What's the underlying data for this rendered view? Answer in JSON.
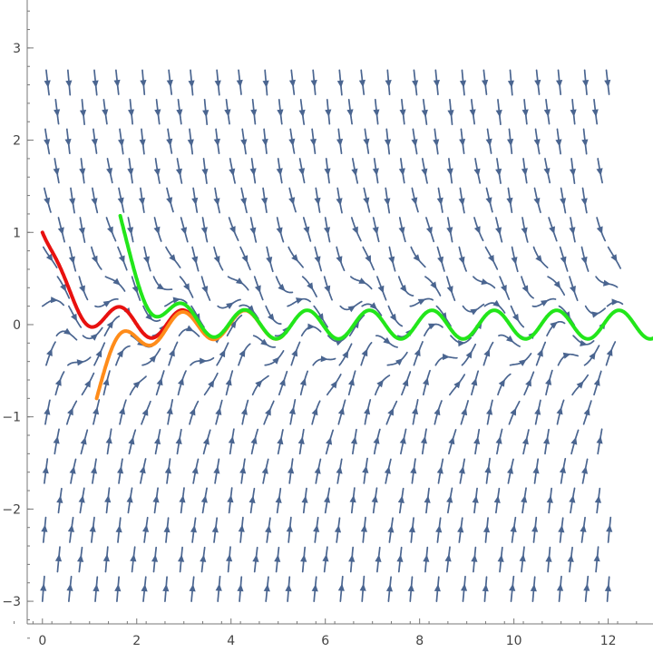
{
  "chart_data": {
    "type": "streamplot",
    "title": "",
    "xlabel": "",
    "ylabel": "",
    "xlim": [
      -0.9,
      12.95
    ],
    "ylim": [
      -3.55,
      3.52
    ],
    "x_ticks": [
      0,
      2,
      4,
      6,
      8,
      10,
      12
    ],
    "y_ticks": [
      -3,
      -2,
      -1,
      0,
      1,
      2,
      3
    ],
    "x_tick_labels": [
      "0",
      "2",
      "4",
      "6",
      "8",
      "10",
      "12"
    ],
    "y_tick_labels": [
      "−3",
      "−2",
      "−1",
      "0",
      "1",
      "2",
      "3"
    ],
    "frame": "bottom-left axes",
    "grid": false,
    "stream_color": "#4a6590",
    "series": [
      {
        "color": "#e8110f",
        "x0": 0.0,
        "y0": 1.0,
        "x_end": 4.5
      },
      {
        "color": "#ff8c1a",
        "x0": 1.15,
        "y0": -0.8,
        "x_end": 5.1
      },
      {
        "color": "#22e61a",
        "x0": 1.65,
        "y0": 1.18,
        "x_end": 12.95
      }
    ]
  }
}
